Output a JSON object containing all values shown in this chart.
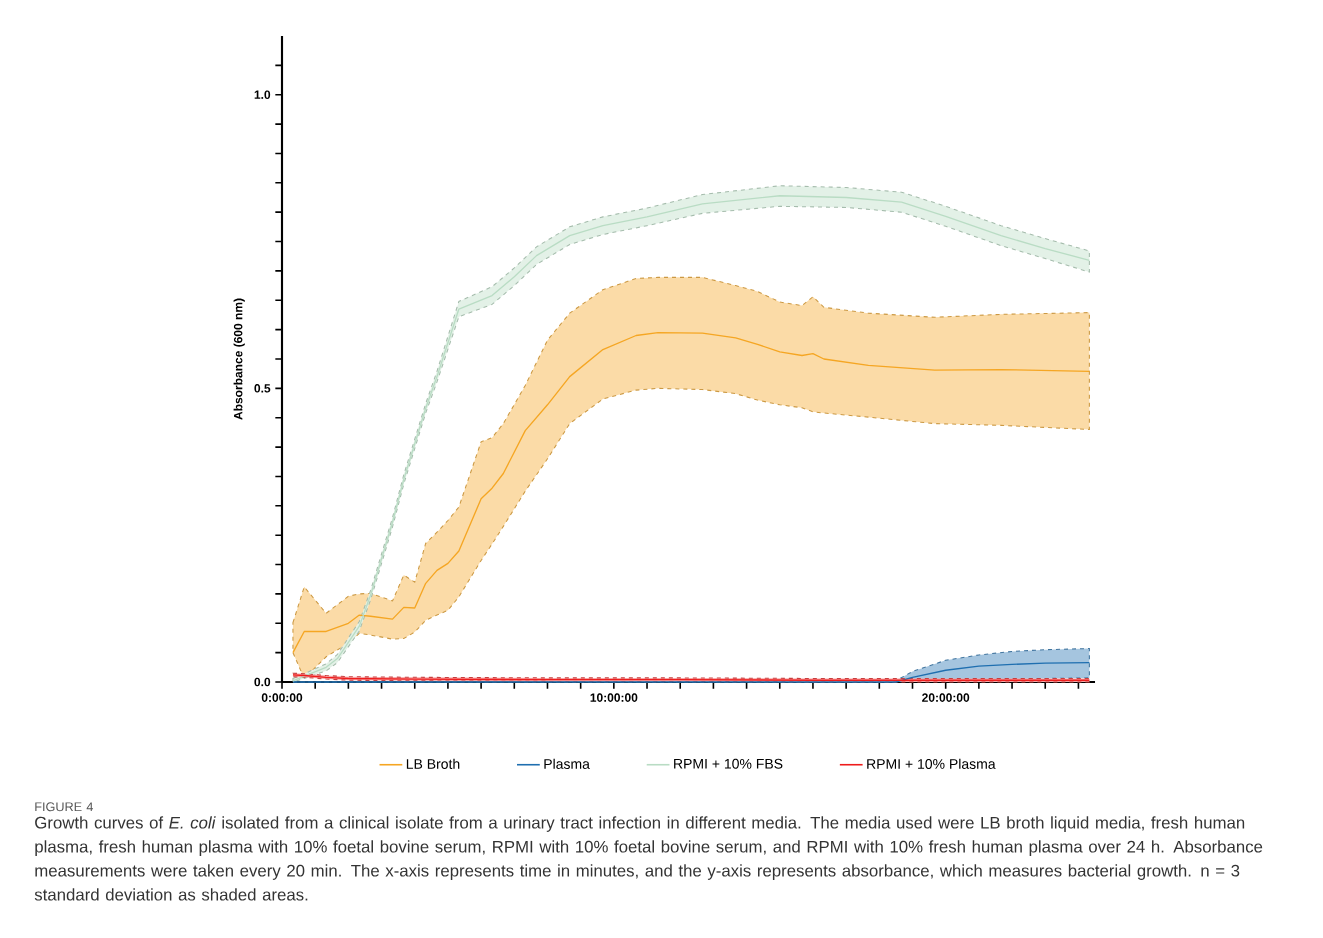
{
  "chart_data": {
    "type": "line",
    "ylabel": "Absorbance (600 nm)",
    "xlim": [
      0,
      24.5
    ],
    "ylim": [
      0,
      1.1
    ],
    "xticks": [
      {
        "value": 0,
        "label": "0:00:00"
      },
      {
        "value": 1,
        "label": null
      },
      {
        "value": 2,
        "label": null
      },
      {
        "value": 3,
        "label": null
      },
      {
        "value": 4,
        "label": null
      },
      {
        "value": 5,
        "label": null
      },
      {
        "value": 6,
        "label": null
      },
      {
        "value": 7,
        "label": null
      },
      {
        "value": 8,
        "label": null
      },
      {
        "value": 9,
        "label": null
      },
      {
        "value": 10,
        "label": "10:00:00"
      },
      {
        "value": 11,
        "label": null
      },
      {
        "value": 12,
        "label": null
      },
      {
        "value": 13,
        "label": null
      },
      {
        "value": 14,
        "label": null
      },
      {
        "value": 15,
        "label": null
      },
      {
        "value": 16,
        "label": null
      },
      {
        "value": 17,
        "label": null
      },
      {
        "value": 18,
        "label": null
      },
      {
        "value": 19,
        "label": null
      },
      {
        "value": 20,
        "label": "20:00:00"
      },
      {
        "value": 21,
        "label": null
      },
      {
        "value": 22,
        "label": null
      },
      {
        "value": 23,
        "label": null
      },
      {
        "value": 24,
        "label": null
      }
    ],
    "yticks": [
      {
        "value": 0,
        "label": "0.0"
      },
      {
        "value": 0.05,
        "label": null
      },
      {
        "value": 0.1,
        "label": null
      },
      {
        "value": 0.15,
        "label": null
      },
      {
        "value": 0.2,
        "label": null
      },
      {
        "value": 0.25,
        "label": null
      },
      {
        "value": 0.3,
        "label": null
      },
      {
        "value": 0.35,
        "label": null
      },
      {
        "value": 0.4,
        "label": null
      },
      {
        "value": 0.45,
        "label": null
      },
      {
        "value": 0.5,
        "label": "0.5"
      },
      {
        "value": 0.55,
        "label": null
      },
      {
        "value": 0.6,
        "label": null
      },
      {
        "value": 0.65,
        "label": null
      },
      {
        "value": 0.7,
        "label": null
      },
      {
        "value": 0.75,
        "label": null
      },
      {
        "value": 0.8,
        "label": null
      },
      {
        "value": 0.85,
        "label": null
      },
      {
        "value": 0.9,
        "label": null
      },
      {
        "value": 0.95,
        "label": null
      },
      {
        "value": 1.0,
        "label": "1.0"
      },
      {
        "value": 1.05,
        "label": null
      }
    ],
    "legend": "bottom",
    "marker": "none",
    "line_style": "solid",
    "series": [
      {
        "name": "LB Broth",
        "color": "#f5a623",
        "x": [
          0.33,
          0.67,
          1.33,
          2,
          2.33,
          2.67,
          3.33,
          3.67,
          4,
          4.33,
          4.67,
          5,
          5.33,
          6,
          6.33,
          6.67,
          7.33,
          8,
          8.67,
          9.67,
          10.67,
          11.33,
          12.67,
          13.67,
          14.33,
          15,
          15.67,
          16,
          16.33,
          17.67,
          19.67,
          21.67,
          24.33
        ],
        "values": [
          0.05,
          0.086,
          0.086,
          0.1,
          0.114,
          0.112,
          0.107,
          0.127,
          0.126,
          0.168,
          0.19,
          0.202,
          0.223,
          0.312,
          0.33,
          0.355,
          0.428,
          0.472,
          0.52,
          0.566,
          0.59,
          0.595,
          0.594,
          0.586,
          0.575,
          0.562,
          0.556,
          0.559,
          0.55,
          0.539,
          0.531,
          0.532,
          0.529
        ],
        "lower": [
          0.05,
          0.006,
          0.043,
          0.066,
          0.083,
          0.08,
          0.073,
          0.074,
          0.085,
          0.105,
          0.114,
          0.122,
          0.145,
          0.207,
          0.235,
          0.265,
          0.325,
          0.38,
          0.44,
          0.482,
          0.497,
          0.5,
          0.498,
          0.491,
          0.48,
          0.472,
          0.467,
          0.46,
          0.458,
          0.451,
          0.44,
          0.437,
          0.43
        ],
        "upper": [
          0.101,
          0.162,
          0.117,
          0.146,
          0.15,
          0.151,
          0.138,
          0.182,
          0.17,
          0.236,
          0.255,
          0.275,
          0.298,
          0.409,
          0.416,
          0.44,
          0.505,
          0.582,
          0.628,
          0.668,
          0.687,
          0.689,
          0.689,
          0.675,
          0.665,
          0.647,
          0.641,
          0.656,
          0.638,
          0.628,
          0.621,
          0.626,
          0.629
        ]
      },
      {
        "name": "Plasma",
        "color": "#1f6fb0",
        "x": [
          0.33,
          18.5,
          19,
          20,
          21,
          22,
          23,
          24.33
        ],
        "values": [
          0,
          0,
          0.008,
          0.02,
          0.027,
          0.03,
          0.032,
          0.033
        ],
        "lower": [
          0,
          0,
          0.002,
          0.004,
          0.005,
          0.005,
          0.006,
          0.007
        ],
        "upper": [
          0,
          0.002,
          0.018,
          0.037,
          0.046,
          0.052,
          0.055,
          0.057
        ]
      },
      {
        "name": "RPMI + 10% FBS",
        "color": "#b9dcc4",
        "x": [
          0.33,
          0.67,
          1.33,
          1.67,
          2.33,
          2.67,
          3.33,
          3.67,
          4.33,
          4.67,
          5.33,
          6.33,
          7,
          7.67,
          8.67,
          9.67,
          11,
          12.67,
          15,
          17,
          18.67,
          20,
          21.67,
          23,
          24.33
        ],
        "values": [
          0.002,
          0.01,
          0.025,
          0.04,
          0.095,
          0.148,
          0.272,
          0.345,
          0.466,
          0.52,
          0.635,
          0.658,
          0.69,
          0.726,
          0.76,
          0.777,
          0.792,
          0.814,
          0.828,
          0.825,
          0.817,
          0.793,
          0.76,
          0.738,
          0.718
        ],
        "lower": [
          0,
          0.006,
          0.019,
          0.033,
          0.087,
          0.14,
          0.264,
          0.337,
          0.458,
          0.511,
          0.622,
          0.643,
          0.675,
          0.711,
          0.745,
          0.762,
          0.777,
          0.798,
          0.81,
          0.808,
          0.8,
          0.776,
          0.743,
          0.721,
          0.698
        ],
        "upper": [
          0.006,
          0.014,
          0.031,
          0.047,
          0.103,
          0.156,
          0.28,
          0.353,
          0.474,
          0.529,
          0.648,
          0.673,
          0.705,
          0.741,
          0.775,
          0.792,
          0.807,
          0.83,
          0.845,
          0.842,
          0.834,
          0.81,
          0.777,
          0.755,
          0.734
        ]
      },
      {
        "name": "RPMI + 10% Plasma",
        "color": "#ee1c1c",
        "x": [
          0.33,
          0.67,
          1.33,
          2,
          4,
          8,
          12,
          16,
          20,
          24.33
        ],
        "values": [
          0.012,
          0.011,
          0.008,
          0.006,
          0.005,
          0.004,
          0.004,
          0.003,
          0.003,
          0.003
        ],
        "lower": [
          0.009,
          0.008,
          0.005,
          0.003,
          0.002,
          0.001,
          0.001,
          0,
          0,
          0
        ],
        "upper": [
          0.015,
          0.014,
          0.011,
          0.009,
          0.008,
          0.007,
          0.007,
          0.006,
          0.006,
          0.006
        ]
      }
    ],
    "annotations": [
      "FIGURE 4",
      "Growth curves of *E. coli* isolated from a clinical isolate from a urinary tract infection in different media. The media used were LB broth liquid media, fresh human plasma, fresh human plasma with 10% foetal bovine serum, RPMI with 10% foetal bovine serum, and RPMI with 10% fresh human plasma over 24 h. Absorbance measurements were taken every 20 min. The x-axis represents time in minutes, and the y-axis represents absorbance, which measures bacterial growth. n = 3 standard deviation as shaded areas."
    ]
  }
}
